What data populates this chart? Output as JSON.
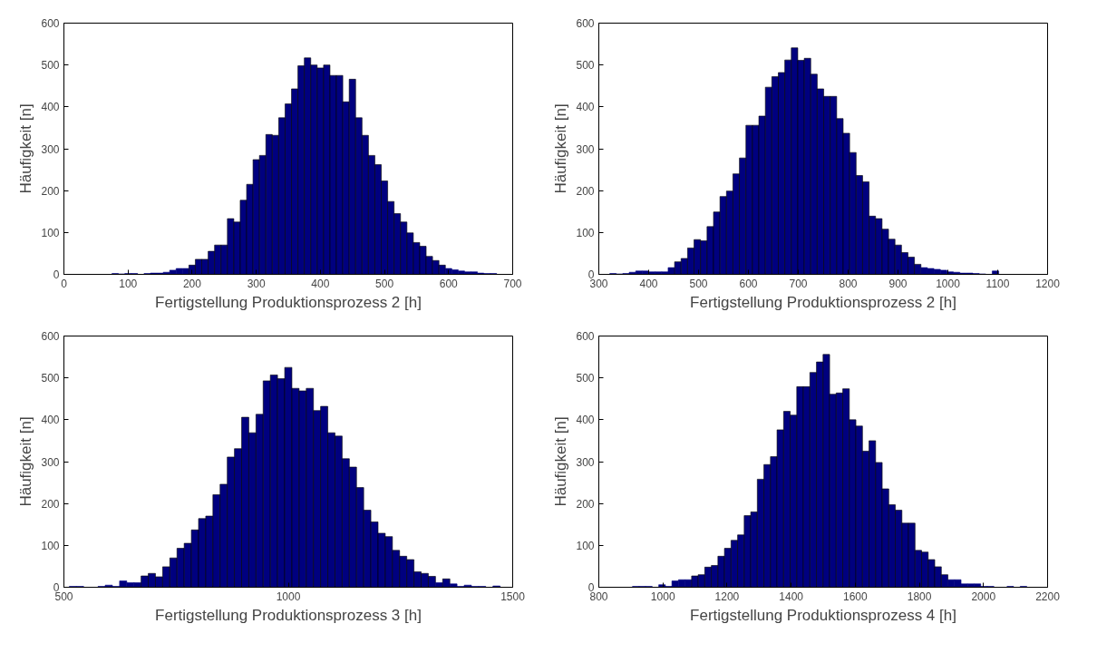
{
  "chart_data": [
    {
      "type": "histogram",
      "xlabel": "Fertigstellung Produktionsprozess 2 [h]",
      "ylabel": "Häufigkeit [n]",
      "color": "#00007f",
      "grid": false,
      "xlim": [
        0,
        700
      ],
      "xticks": [
        0,
        100,
        200,
        300,
        400,
        500,
        600,
        700
      ],
      "ylim": [
        0,
        600
      ],
      "yticks": [
        0,
        100,
        200,
        300,
        400,
        500,
        600
      ],
      "bins": [
        75,
        85,
        95,
        105,
        115,
        125,
        135,
        145,
        155,
        165,
        175,
        185,
        195,
        205,
        215,
        225,
        235,
        245,
        255,
        265,
        275,
        285,
        295,
        305,
        315,
        325,
        335,
        345,
        355,
        365,
        375,
        385,
        395,
        405,
        415,
        425,
        435,
        445,
        455,
        465,
        475,
        485,
        495,
        505,
        515,
        525,
        535,
        545,
        555,
        565,
        575,
        585,
        595,
        605,
        615,
        625,
        635,
        645,
        655,
        665,
        675
      ],
      "values": [
        2,
        1,
        2,
        2,
        0,
        2,
        3,
        3,
        5,
        10,
        14,
        14,
        22,
        36,
        36,
        55,
        70,
        70,
        133,
        125,
        177,
        215,
        274,
        284,
        334,
        332,
        374,
        407,
        443,
        498,
        517,
        500,
        493,
        500,
        475,
        475,
        412,
        466,
        374,
        332,
        284,
        262,
        223,
        174,
        145,
        125,
        99,
        76,
        67,
        43,
        33,
        22,
        14,
        11,
        8,
        6,
        6,
        3,
        2,
        2
      ]
    },
    {
      "type": "histogram",
      "xlabel": "Fertigstellung Produktionsprozess 2 [h]",
      "ylabel": "Häufigkeit [n]",
      "color": "#00007f",
      "grid": false,
      "xlim": [
        300,
        1200
      ],
      "xticks": [
        300,
        400,
        500,
        600,
        700,
        800,
        900,
        1000,
        1100,
        1200
      ],
      "ylim": [
        0,
        600
      ],
      "yticks": [
        0,
        100,
        200,
        300,
        400,
        500,
        600
      ],
      "bins": [
        322,
        335,
        348,
        361,
        374,
        387,
        400,
        413,
        426,
        439,
        452,
        465,
        478,
        491,
        504,
        517,
        530,
        543,
        556,
        569,
        582,
        595,
        608,
        621,
        634,
        647,
        660,
        673,
        686,
        699,
        712,
        725,
        738,
        751,
        764,
        777,
        790,
        803,
        816,
        829,
        842,
        855,
        868,
        881,
        894,
        907,
        920,
        933,
        946,
        959,
        972,
        985,
        998,
        1011,
        1024,
        1037,
        1050,
        1063,
        1076,
        1089,
        1102
      ],
      "values": [
        2,
        1,
        2,
        5,
        8,
        8,
        6,
        6,
        6,
        16,
        30,
        38,
        63,
        83,
        80,
        114,
        149,
        186,
        199,
        240,
        278,
        356,
        356,
        378,
        447,
        472,
        482,
        512,
        541,
        511,
        516,
        478,
        443,
        425,
        425,
        372,
        337,
        291,
        236,
        221,
        139,
        133,
        108,
        84,
        70,
        52,
        41,
        24,
        16,
        14,
        12,
        10,
        6,
        5,
        3,
        3,
        2,
        1,
        0,
        8
      ]
    },
    {
      "type": "histogram",
      "xlabel": "Fertigstellung Produktionsprozess 3 [h]",
      "ylabel": "Häufigkeit [n]",
      "color": "#00007f",
      "grid": false,
      "xlim": [
        500,
        1500
      ],
      "xticks": [
        500,
        1000,
        1500
      ],
      "ylim": [
        0,
        600
      ],
      "yticks": [
        0,
        100,
        200,
        300,
        400,
        500,
        600
      ],
      "bins": [
        512,
        528,
        544,
        560,
        576,
        592,
        608,
        624,
        640,
        656,
        672,
        688,
        704,
        720,
        736,
        752,
        768,
        784,
        800,
        816,
        832,
        848,
        864,
        880,
        896,
        912,
        928,
        944,
        960,
        976,
        992,
        1008,
        1024,
        1040,
        1056,
        1072,
        1088,
        1104,
        1120,
        1136,
        1152,
        1168,
        1184,
        1200,
        1216,
        1232,
        1248,
        1264,
        1280,
        1296,
        1312,
        1328,
        1344,
        1360,
        1376,
        1392,
        1408,
        1424,
        1440,
        1456,
        1472
      ],
      "values": [
        2,
        2,
        0,
        0,
        2,
        5,
        2,
        15,
        11,
        11,
        27,
        33,
        25,
        49,
        70,
        93,
        105,
        137,
        164,
        170,
        221,
        246,
        311,
        331,
        406,
        369,
        413,
        493,
        507,
        498,
        525,
        475,
        469,
        475,
        422,
        432,
        369,
        361,
        307,
        287,
        238,
        184,
        156,
        129,
        121,
        88,
        74,
        66,
        37,
        33,
        26,
        11,
        20,
        8,
        2,
        5,
        2,
        2,
        0,
        3
      ]
    },
    {
      "type": "histogram",
      "xlabel": "Fertigstellung Produktionsprozess 4 [h]",
      "ylabel": "Häufigkeit [n]",
      "color": "#00007f",
      "grid": false,
      "xlim": [
        800,
        2200
      ],
      "xticks": [
        800,
        1000,
        1200,
        1400,
        1600,
        1800,
        2000,
        2200
      ],
      "ylim": [
        0,
        600
      ],
      "yticks": [
        0,
        100,
        200,
        300,
        400,
        500,
        600
      ],
      "bins": [
        905,
        925.5,
        946,
        966.5,
        987,
        1007.5,
        1028,
        1048.5,
        1069,
        1089.5,
        1110,
        1130.5,
        1151,
        1171.5,
        1192,
        1212.5,
        1233,
        1253.5,
        1274,
        1294.5,
        1315,
        1335.5,
        1356,
        1376.5,
        1397,
        1417.5,
        1438,
        1458.5,
        1479,
        1499.5,
        1520,
        1540.5,
        1561,
        1581.5,
        1602,
        1622.5,
        1643,
        1663.5,
        1684,
        1704.5,
        1725,
        1745.5,
        1766,
        1786.5,
        1807,
        1827.5,
        1848,
        1868.5,
        1889,
        1909.5,
        1930,
        1950.5,
        1971,
        1991.5,
        2012,
        2032.5,
        2053,
        2073.5,
        2094,
        2114.5,
        2135
      ],
      "values": [
        2,
        2,
        2,
        0,
        6,
        2,
        15,
        18,
        18,
        27,
        30,
        48,
        52,
        74,
        93,
        112,
        125,
        171,
        180,
        258,
        293,
        312,
        376,
        420,
        411,
        479,
        479,
        513,
        538,
        556,
        461,
        464,
        474,
        400,
        385,
        325,
        350,
        298,
        235,
        197,
        184,
        153,
        153,
        88,
        84,
        66,
        49,
        30,
        18,
        18,
        8,
        8,
        8,
        2,
        2,
        0,
        0,
        2,
        0,
        2
      ]
    }
  ]
}
